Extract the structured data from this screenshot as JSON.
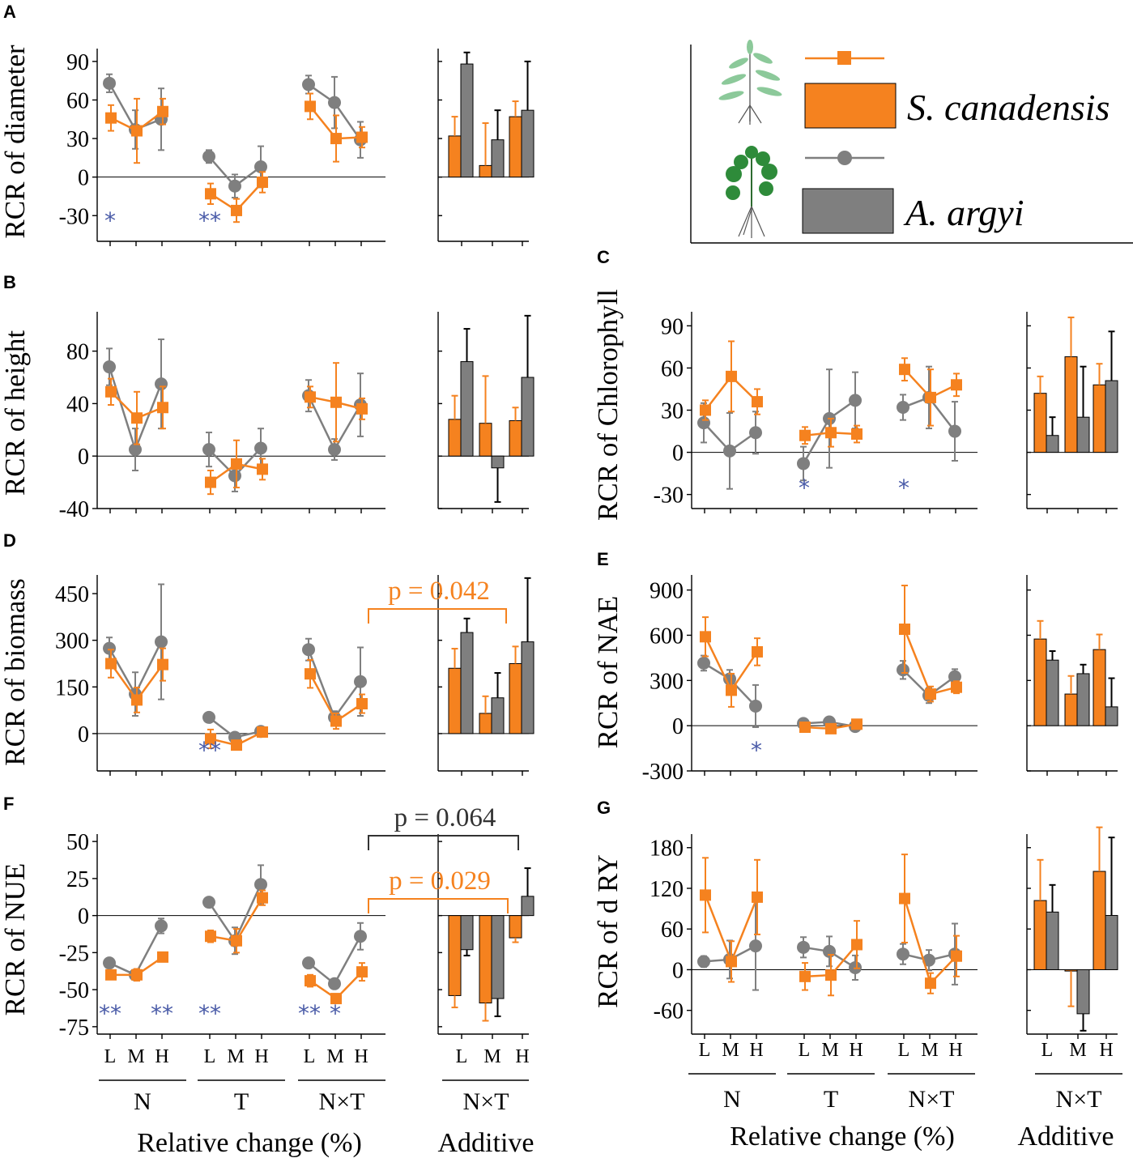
{
  "colors": {
    "orange": "#f5821f",
    "gray": "#7f7f7f",
    "star": "#4a5ba8",
    "plant1": "#8cc99a",
    "plant2": "#2e8b3a"
  },
  "legend": {
    "series": [
      {
        "name": "S. canadensis",
        "marker": "square",
        "color": "#f5821f"
      },
      {
        "name": "A. argyi",
        "marker": "circle",
        "color": "#7f7f7f"
      }
    ],
    "icons": [
      "s-canadensis-plant-icon",
      "a-argyi-plant-icon"
    ]
  },
  "x_categories": [
    "L",
    "M",
    "H"
  ],
  "x_groups": [
    "N",
    "T",
    "N×T"
  ],
  "additive_group": "N×T",
  "xlabel_left": "Relative change (%)",
  "xlabel_right": "Additive",
  "chart_data": [
    {
      "panel": "A",
      "type": "line+bar",
      "ylabel": "RCR of diameter",
      "ylim": [
        -50,
        100
      ],
      "yticks": [
        -30,
        0,
        30,
        60,
        90
      ],
      "line": {
        "S. canadensis": {
          "values": [
            46,
            36,
            51,
            -13,
            -26,
            -4,
            55,
            30,
            31
          ],
          "errors": [
            10,
            25,
            10,
            8,
            9,
            8,
            10,
            18,
            8
          ]
        },
        "A. argyi": {
          "values": [
            73,
            37,
            45,
            16,
            -7,
            8,
            72,
            58,
            29
          ],
          "errors": [
            7,
            15,
            24,
            5,
            9,
            16,
            7,
            20,
            14
          ]
        }
      },
      "bar": {
        "S. canadensis": {
          "values": [
            32,
            9,
            47
          ],
          "errors": [
            15,
            33,
            12
          ]
        },
        "A. argyi": {
          "values": [
            88,
            29,
            52
          ],
          "errors": [
            9,
            23,
            38
          ]
        }
      },
      "stars": [
        "*",
        "",
        "",
        "**",
        "",
        "",
        "",
        "",
        ""
      ],
      "brackets": []
    },
    {
      "panel": "B",
      "type": "line+bar",
      "ylabel": "RCR of height",
      "ylim": [
        -40,
        110
      ],
      "yticks": [
        -40,
        0,
        40,
        80
      ],
      "line": {
        "S. canadensis": {
          "values": [
            49,
            29,
            37,
            -20,
            -6,
            -10,
            45,
            41,
            36
          ],
          "errors": [
            10,
            20,
            16,
            9,
            18,
            8,
            8,
            30,
            8
          ]
        },
        "A. argyi": {
          "values": [
            68,
            5,
            55,
            5,
            -15,
            6,
            46,
            5,
            39
          ],
          "errors": [
            14,
            16,
            34,
            13,
            12,
            15,
            12,
            8,
            24
          ]
        }
      },
      "bar": {
        "S. canadensis": {
          "values": [
            28,
            25,
            27
          ],
          "errors": [
            18,
            36,
            10
          ]
        },
        "A. argyi": {
          "values": [
            72,
            -9,
            60
          ],
          "errors": [
            25,
            26,
            47
          ]
        }
      },
      "stars": [
        "",
        "",
        "",
        "",
        "",
        "",
        "",
        "",
        ""
      ],
      "brackets": []
    },
    {
      "panel": "C",
      "type": "line+bar",
      "ylabel": "RCR of Chlorophyll",
      "ylim": [
        -40,
        100
      ],
      "yticks": [
        -30,
        0,
        30,
        60,
        90
      ],
      "line": {
        "S. canadensis": {
          "values": [
            30,
            54,
            36,
            12,
            14,
            13,
            59,
            39,
            48
          ],
          "errors": [
            7,
            25,
            9,
            6,
            10,
            6,
            8,
            20,
            8
          ]
        },
        "A. argyi": {
          "values": [
            21,
            1,
            14,
            -8,
            24,
            37,
            32,
            39,
            15
          ],
          "errors": [
            14,
            27,
            15,
            12,
            35,
            20,
            9,
            22,
            21
          ]
        }
      },
      "bar": {
        "S. canadensis": {
          "values": [
            42,
            68,
            48
          ],
          "errors": [
            12,
            28,
            15
          ]
        },
        "A. argyi": {
          "values": [
            12,
            25,
            51
          ],
          "errors": [
            13,
            36,
            35
          ]
        }
      },
      "stars": [
        "",
        "",
        "",
        "*",
        "",
        "",
        "*",
        "",
        ""
      ],
      "brackets": []
    },
    {
      "panel": "D",
      "type": "line+bar",
      "ylabel": "RCR of biomass",
      "ylim": [
        -120,
        510
      ],
      "yticks": [
        0,
        150,
        300,
        450
      ],
      "line": {
        "S. canadensis": {
          "values": [
            225,
            108,
            222,
            -17,
            -37,
            5,
            192,
            40,
            96
          ],
          "errors": [
            45,
            40,
            52,
            30,
            15,
            15,
            45,
            25,
            30
          ]
        },
        "A. argyi": {
          "values": [
            274,
            127,
            295,
            52,
            -12,
            7,
            270,
            52,
            167
          ],
          "errors": [
            35,
            70,
            185,
            12,
            10,
            10,
            35,
            20,
            110
          ]
        }
      },
      "bar": {
        "S. canadensis": {
          "values": [
            210,
            65,
            225
          ],
          "errors": [
            63,
            55,
            55
          ]
        },
        "A. argyi": {
          "values": [
            325,
            115,
            295
          ],
          "errors": [
            45,
            80,
            205
          ]
        }
      },
      "stars": [
        "",
        "",
        "",
        "**",
        "",
        "",
        "",
        "",
        ""
      ],
      "brackets": [
        {
          "label": "p = 0.042",
          "color": "#f5821f"
        }
      ]
    },
    {
      "panel": "E",
      "type": "line+bar",
      "ylabel": "RCR of NAE",
      "ylim": [
        -300,
        1000
      ],
      "yticks": [
        -300,
        0,
        300,
        600,
        900
      ],
      "line": {
        "S. canadensis": {
          "values": [
            590,
            235,
            490,
            -10,
            -20,
            10,
            640,
            210,
            255
          ],
          "errors": [
            130,
            110,
            90,
            25,
            25,
            30,
            290,
            50,
            40
          ]
        },
        "A. argyi": {
          "values": [
            415,
            310,
            130,
            15,
            25,
            -5,
            370,
            200,
            325
          ],
          "errors": [
            50,
            60,
            140,
            25,
            20,
            25,
            60,
            50,
            50
          ]
        }
      },
      "bar": {
        "S. canadensis": {
          "values": [
            575,
            210,
            505
          ],
          "errors": [
            120,
            120,
            100
          ]
        },
        "A. argyi": {
          "values": [
            435,
            345,
            125
          ],
          "errors": [
            60,
            60,
            190
          ]
        }
      },
      "stars": [
        "",
        "",
        "*",
        "",
        "",
        "",
        "",
        "",
        ""
      ],
      "brackets": []
    },
    {
      "panel": "F",
      "type": "line+bar",
      "ylabel": "RCR of NUE",
      "ylim": [
        -80,
        55
      ],
      "yticks": [
        -75,
        -50,
        -25,
        0,
        25,
        50
      ],
      "line": {
        "S. canadensis": {
          "values": [
            -40,
            -40,
            -28,
            -14,
            -17,
            12,
            -44,
            -56,
            -38
          ],
          "errors": [
            3,
            4,
            3,
            4,
            8,
            5,
            4,
            3,
            6
          ]
        },
        "A. argyi": {
          "values": [
            -32,
            -40,
            -7,
            9,
            -17,
            21,
            -32,
            -46,
            -14
          ],
          "errors": [
            3,
            3,
            5,
            3,
            9,
            13,
            3,
            3,
            9
          ]
        }
      },
      "bar": {
        "S. canadensis": {
          "values": [
            -54,
            -59,
            -15
          ],
          "errors": [
            8,
            12,
            3
          ]
        },
        "A. argyi": {
          "values": [
            -23,
            -56,
            13
          ],
          "errors": [
            4,
            12,
            19
          ]
        }
      },
      "stars": [
        "**",
        "",
        "**",
        "**",
        "",
        "",
        "**",
        "*",
        ""
      ],
      "brackets": [
        {
          "label": "p = 0.064",
          "color": "#333333"
        },
        {
          "label": "p = 0.029",
          "color": "#f5821f"
        }
      ]
    },
    {
      "panel": "G",
      "type": "line+bar",
      "ylabel": "RCR of d RY",
      "ylim": [
        -95,
        200
      ],
      "yticks": [
        -60,
        0,
        60,
        120,
        180
      ],
      "line": {
        "S. canadensis": {
          "values": [
            110,
            12,
            107,
            -10,
            -8,
            37,
            105,
            -20,
            20
          ],
          "errors": [
            55,
            30,
            55,
            20,
            30,
            35,
            65,
            15,
            30
          ]
        },
        "A. argyi": {
          "values": [
            12,
            15,
            35,
            33,
            27,
            3,
            23,
            14,
            23
          ],
          "errors": [
            8,
            28,
            65,
            15,
            22,
            18,
            15,
            15,
            45
          ]
        }
      },
      "bar": {
        "S. canadensis": {
          "values": [
            102,
            -2,
            145
          ],
          "errors": [
            60,
            52,
            65
          ]
        },
        "A. argyi": {
          "values": [
            85,
            -65,
            80
          ],
          "errors": [
            40,
            25,
            115
          ]
        }
      },
      "stars": [
        "",
        "",
        "",
        "",
        "",
        "",
        "",
        "",
        ""
      ],
      "brackets": []
    }
  ]
}
